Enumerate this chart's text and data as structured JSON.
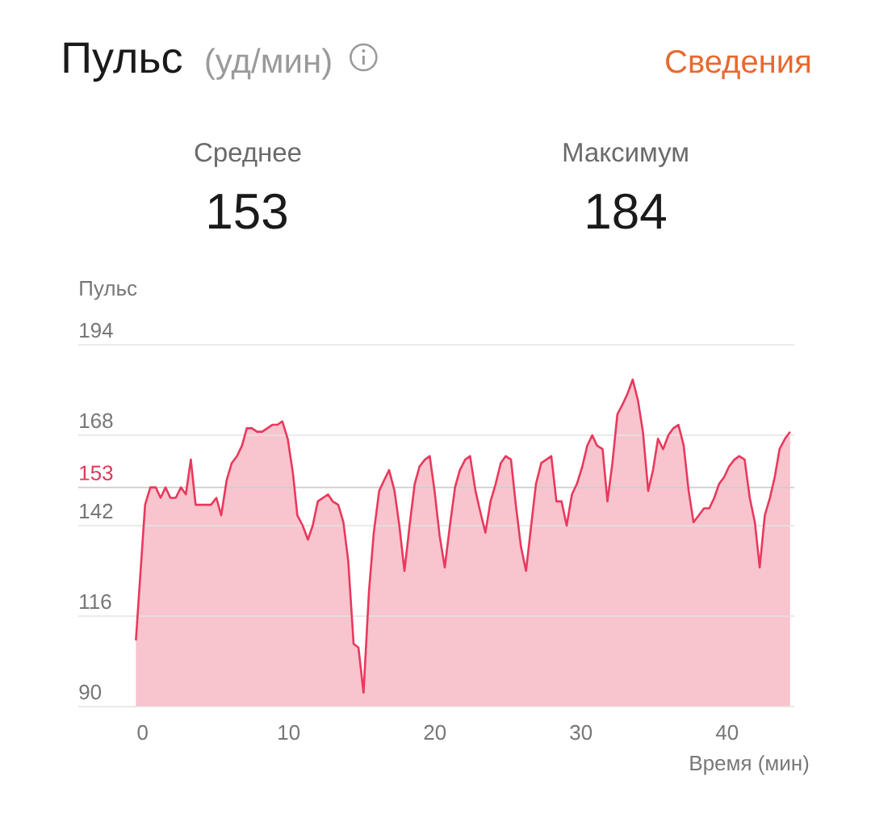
{
  "chart_data": {
    "type": "area",
    "title": "Пульс",
    "subtitle": "(уд/мин)",
    "xlabel": "Время (мин)",
    "ylabel": "Пульс",
    "annotations": [
      "Сведения",
      "Среднее",
      "153",
      "Максимум",
      "184"
    ],
    "x": [
      -0.46,
      0.17,
      0.53,
      0.9,
      1.23,
      1.57,
      1.9,
      2.27,
      2.62,
      2.96,
      3.3,
      3.63,
      4.68,
      5.05,
      5.38,
      5.75,
      6.1,
      6.46,
      6.8,
      7.13,
      7.48,
      7.83,
      8.18,
      8.53,
      8.88,
      9.23,
      9.56,
      9.93,
      10.29,
      10.59,
      10.96,
      11.31,
      11.64,
      11.99,
      12.69,
      13.0,
      13.39,
      13.74,
      14.07,
      14.44,
      14.77,
      15.12,
      15.49,
      15.82,
      16.19,
      16.52,
      16.87,
      17.24,
      17.57,
      17.92,
      18.27,
      18.62,
      18.95,
      19.32,
      19.65,
      19.98,
      20.33,
      20.68,
      21.03,
      21.38,
      21.71,
      22.08,
      22.41,
      22.78,
      23.11,
      23.46,
      23.81,
      24.16,
      24.51,
      24.85,
      25.21,
      25.54,
      25.89,
      26.24,
      26.59,
      26.92,
      27.28,
      27.63,
      27.97,
      28.32,
      28.67,
      29.02,
      29.38,
      29.72,
      30.09,
      30.43,
      30.77,
      31.1,
      31.48,
      31.81,
      32.15,
      32.49,
      32.86,
      33.19,
      33.54,
      33.9,
      34.24,
      34.6,
      34.93,
      35.27,
      35.62,
      35.98,
      36.32,
      36.67,
      37.03,
      37.37,
      37.7,
      38.07,
      38.42,
      38.78,
      39.12,
      39.45,
      39.8,
      40.13,
      40.5,
      40.83,
      41.2,
      41.55,
      41.9,
      42.23,
      42.58,
      42.93,
      43.26,
      43.59,
      43.96,
      44.31
    ],
    "series": [
      {
        "color": "#e8395d",
        "values": [
          109,
          148,
          153,
          153,
          150,
          153,
          150,
          150,
          153,
          151,
          161,
          148,
          148,
          150,
          145,
          155,
          160,
          162,
          165,
          170,
          170,
          169,
          169,
          170,
          171,
          171,
          172,
          167,
          157,
          145,
          142,
          138,
          142,
          149,
          151,
          149,
          148,
          143,
          132,
          108,
          107,
          94,
          123,
          140,
          152,
          155,
          158,
          152,
          142,
          129,
          142,
          154,
          159,
          161,
          162,
          152,
          139,
          130,
          142,
          153,
          158,
          161,
          162,
          152,
          146,
          140,
          149,
          154,
          160,
          162,
          161,
          148,
          136,
          129,
          142,
          154,
          160,
          161,
          162,
          149,
          149,
          142,
          151,
          154,
          159,
          165,
          168,
          165,
          164,
          149,
          160,
          174,
          177,
          180,
          184,
          178,
          169,
          152,
          158,
          167,
          164,
          168,
          170,
          171,
          165,
          152,
          143,
          145,
          147,
          147,
          150,
          154,
          156,
          159,
          161,
          162,
          161,
          150,
          143,
          130,
          145,
          150,
          156,
          164,
          167,
          169
        ]
      }
    ],
    "xlim": [
      -4.4,
      44.6
    ],
    "ylim": [
      90,
      194
    ],
    "xticks": [
      0,
      10,
      20,
      30,
      40
    ],
    "yticks": [
      90,
      116,
      142,
      168,
      194
    ],
    "ref_lines": [
      {
        "axis": "y",
        "value": 153,
        "label": "153"
      }
    ],
    "grid": "y"
  }
}
